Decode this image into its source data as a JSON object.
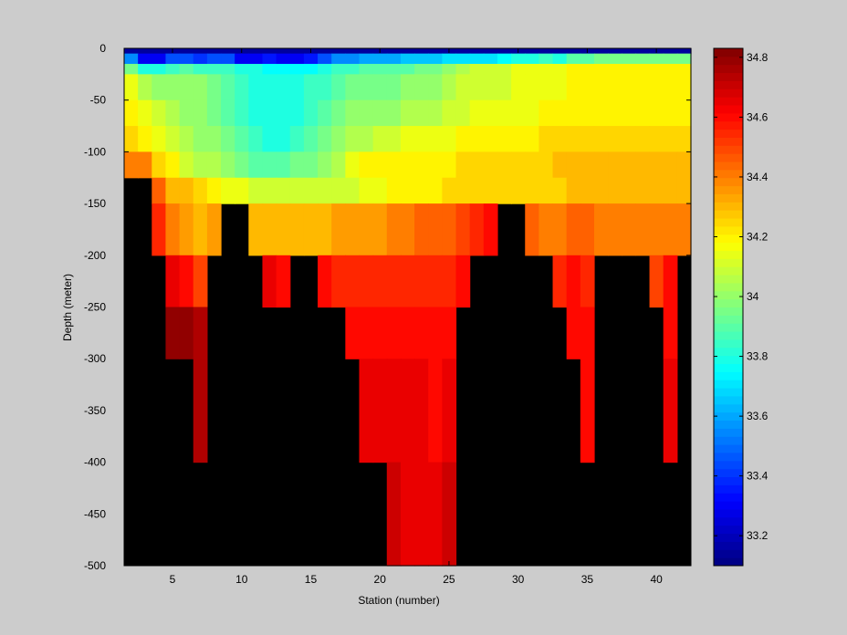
{
  "chart_data": {
    "type": "heatmap",
    "title": "",
    "xlabel": "Station (number)",
    "ylabel": "Depth (meter)",
    "xlim": [
      1.5,
      42.5
    ],
    "ylim": [
      -500,
      0
    ],
    "xticks": [
      5,
      10,
      15,
      20,
      25,
      30,
      35,
      40
    ],
    "yticks": [
      0,
      -50,
      -100,
      -150,
      -200,
      -250,
      -300,
      -350,
      -400,
      -450,
      -500
    ],
    "colorbar": {
      "min": 33.1,
      "max": 34.83,
      "ticks": [
        33.2,
        33.4,
        33.6,
        33.8,
        34,
        34.2,
        34.4,
        34.6,
        34.8
      ],
      "colormap": "jet"
    },
    "no_data_color": "#000000",
    "stations": [
      2,
      3,
      4,
      5,
      6,
      7,
      8,
      9,
      10,
      11,
      12,
      13,
      14,
      15,
      16,
      17,
      18,
      19,
      20,
      21,
      22,
      23,
      24,
      25,
      26,
      27,
      28,
      29,
      30,
      31,
      32,
      33,
      34,
      35,
      36,
      37,
      38,
      39,
      40,
      41,
      42
    ],
    "layers": [
      {
        "top": 0,
        "bottom": -5,
        "values": [
          33.15,
          33.15,
          33.15,
          33.15,
          33.15,
          33.15,
          33.15,
          33.15,
          33.15,
          33.15,
          33.15,
          33.15,
          33.15,
          33.15,
          33.15,
          33.15,
          33.15,
          33.15,
          33.15,
          33.15,
          33.15,
          33.15,
          33.15,
          33.15,
          33.15,
          33.15,
          33.15,
          33.15,
          33.15,
          33.15,
          33.15,
          33.15,
          33.15,
          33.15,
          33.15,
          33.15,
          33.15,
          33.15,
          33.15,
          33.15,
          33.15
        ]
      },
      {
        "top": -5,
        "bottom": -15,
        "values": [
          33.55,
          33.3,
          33.3,
          33.45,
          33.45,
          33.4,
          33.45,
          33.45,
          33.3,
          33.3,
          33.35,
          33.3,
          33.3,
          33.35,
          33.45,
          33.55,
          33.55,
          33.6,
          33.6,
          33.6,
          33.65,
          33.65,
          33.65,
          33.7,
          33.7,
          33.7,
          33.7,
          33.75,
          33.8,
          33.8,
          33.85,
          33.8,
          33.9,
          33.9,
          33.95,
          33.95,
          33.95,
          33.95,
          33.95,
          33.95,
          33.95
        ]
      },
      {
        "top": -15,
        "bottom": -25,
        "values": [
          33.95,
          33.8,
          33.8,
          33.85,
          33.9,
          33.85,
          33.85,
          33.85,
          33.8,
          33.8,
          33.75,
          33.75,
          33.75,
          33.75,
          33.8,
          33.85,
          33.85,
          33.9,
          33.9,
          33.9,
          33.9,
          33.95,
          33.95,
          34.0,
          34.05,
          34.1,
          34.1,
          34.1,
          34.15,
          34.15,
          34.15,
          34.15,
          34.2,
          34.2,
          34.2,
          34.2,
          34.2,
          34.2,
          34.2,
          34.2,
          34.2
        ]
      },
      {
        "top": -25,
        "bottom": -50,
        "values": [
          34.15,
          34.05,
          34.0,
          34.0,
          34.0,
          34.0,
          33.95,
          33.9,
          33.85,
          33.8,
          33.8,
          33.8,
          33.8,
          33.85,
          33.85,
          33.9,
          33.95,
          33.95,
          33.95,
          33.95,
          34.0,
          34.0,
          34.0,
          34.05,
          34.1,
          34.1,
          34.1,
          34.1,
          34.15,
          34.15,
          34.15,
          34.15,
          34.2,
          34.2,
          34.2,
          34.2,
          34.2,
          34.2,
          34.2,
          34.2,
          34.2
        ]
      },
      {
        "top": -50,
        "bottom": -75,
        "values": [
          34.2,
          34.15,
          34.1,
          34.05,
          34.0,
          34.0,
          33.95,
          33.9,
          33.85,
          33.8,
          33.8,
          33.8,
          33.8,
          33.85,
          33.9,
          33.95,
          34.0,
          34.0,
          34.0,
          34.0,
          34.05,
          34.05,
          34.05,
          34.1,
          34.1,
          34.15,
          34.15,
          34.15,
          34.15,
          34.15,
          34.2,
          34.2,
          34.2,
          34.2,
          34.2,
          34.2,
          34.2,
          34.2,
          34.2,
          34.2,
          34.2
        ]
      },
      {
        "top": -75,
        "bottom": -100,
        "values": [
          34.25,
          34.2,
          34.15,
          34.1,
          34.05,
          34.0,
          34.0,
          33.95,
          33.9,
          33.85,
          33.8,
          33.8,
          33.85,
          33.9,
          33.95,
          34.0,
          34.05,
          34.05,
          34.1,
          34.1,
          34.15,
          34.15,
          34.15,
          34.15,
          34.2,
          34.2,
          34.2,
          34.2,
          34.2,
          34.2,
          34.25,
          34.25,
          34.25,
          34.25,
          34.25,
          34.25,
          34.25,
          34.25,
          34.25,
          34.25,
          34.25
        ]
      },
      {
        "top": -100,
        "bottom": -125,
        "values": [
          34.4,
          34.4,
          34.25,
          34.2,
          34.1,
          34.05,
          34.05,
          34.0,
          33.95,
          33.9,
          33.9,
          33.9,
          33.95,
          33.95,
          34.0,
          34.05,
          34.15,
          34.2,
          34.2,
          34.2,
          34.2,
          34.2,
          34.2,
          34.2,
          34.25,
          34.25,
          34.25,
          34.25,
          34.25,
          34.25,
          34.25,
          34.3,
          34.3,
          34.3,
          34.3,
          34.3,
          34.3,
          34.3,
          34.3,
          34.3,
          34.3
        ]
      },
      {
        "top": -125,
        "bottom": -150,
        "values": [
          null,
          null,
          34.45,
          34.3,
          34.3,
          34.25,
          34.2,
          34.15,
          34.15,
          34.1,
          34.1,
          34.1,
          34.1,
          34.1,
          34.1,
          34.1,
          34.1,
          34.15,
          34.15,
          34.2,
          34.2,
          34.2,
          34.2,
          34.25,
          34.25,
          34.25,
          34.25,
          34.25,
          34.25,
          34.25,
          34.25,
          34.25,
          34.3,
          34.3,
          34.3,
          34.3,
          34.3,
          34.3,
          34.3,
          34.3,
          34.3
        ]
      },
      {
        "top": -150,
        "bottom": -200,
        "values": [
          null,
          null,
          34.55,
          34.4,
          34.35,
          34.3,
          34.35,
          null,
          null,
          34.3,
          34.3,
          34.3,
          34.3,
          34.3,
          34.3,
          34.35,
          34.35,
          34.35,
          34.35,
          34.4,
          34.4,
          34.45,
          34.45,
          34.45,
          34.5,
          34.55,
          34.6,
          null,
          null,
          34.45,
          34.4,
          34.4,
          34.45,
          34.45,
          34.4,
          34.4,
          34.4,
          34.4,
          34.4,
          34.4,
          34.4
        ]
      },
      {
        "top": -200,
        "bottom": -250,
        "values": [
          null,
          null,
          null,
          34.65,
          34.6,
          34.5,
          null,
          null,
          null,
          null,
          34.65,
          34.6,
          null,
          null,
          34.6,
          34.55,
          34.55,
          34.55,
          34.55,
          34.55,
          34.55,
          34.55,
          34.55,
          34.55,
          34.6,
          null,
          null,
          null,
          null,
          null,
          null,
          34.55,
          34.6,
          34.55,
          null,
          null,
          null,
          null,
          34.5,
          34.6,
          null
        ]
      },
      {
        "top": -250,
        "bottom": -300,
        "values": [
          null,
          null,
          null,
          34.8,
          34.8,
          34.75,
          null,
          null,
          null,
          null,
          null,
          null,
          null,
          null,
          null,
          null,
          34.6,
          34.6,
          34.6,
          34.6,
          34.6,
          34.6,
          34.6,
          34.6,
          null,
          null,
          null,
          null,
          null,
          null,
          null,
          null,
          34.6,
          34.6,
          null,
          null,
          null,
          null,
          null,
          34.6,
          null
        ]
      },
      {
        "top": -300,
        "bottom": -400,
        "values": [
          null,
          null,
          null,
          null,
          null,
          34.75,
          null,
          null,
          null,
          null,
          null,
          null,
          null,
          null,
          null,
          null,
          null,
          34.65,
          34.65,
          34.65,
          34.65,
          34.65,
          34.6,
          34.65,
          null,
          null,
          null,
          null,
          null,
          null,
          null,
          null,
          null,
          34.6,
          null,
          null,
          null,
          null,
          null,
          34.65,
          null
        ]
      },
      {
        "top": -400,
        "bottom": -500,
        "values": [
          null,
          null,
          null,
          null,
          null,
          null,
          null,
          null,
          null,
          null,
          null,
          null,
          null,
          null,
          null,
          null,
          null,
          null,
          null,
          34.7,
          34.65,
          34.65,
          34.65,
          34.7,
          null,
          null,
          null,
          null,
          null,
          null,
          null,
          null,
          null,
          null,
          null,
          null,
          null,
          null,
          null,
          null,
          null
        ]
      }
    ]
  }
}
